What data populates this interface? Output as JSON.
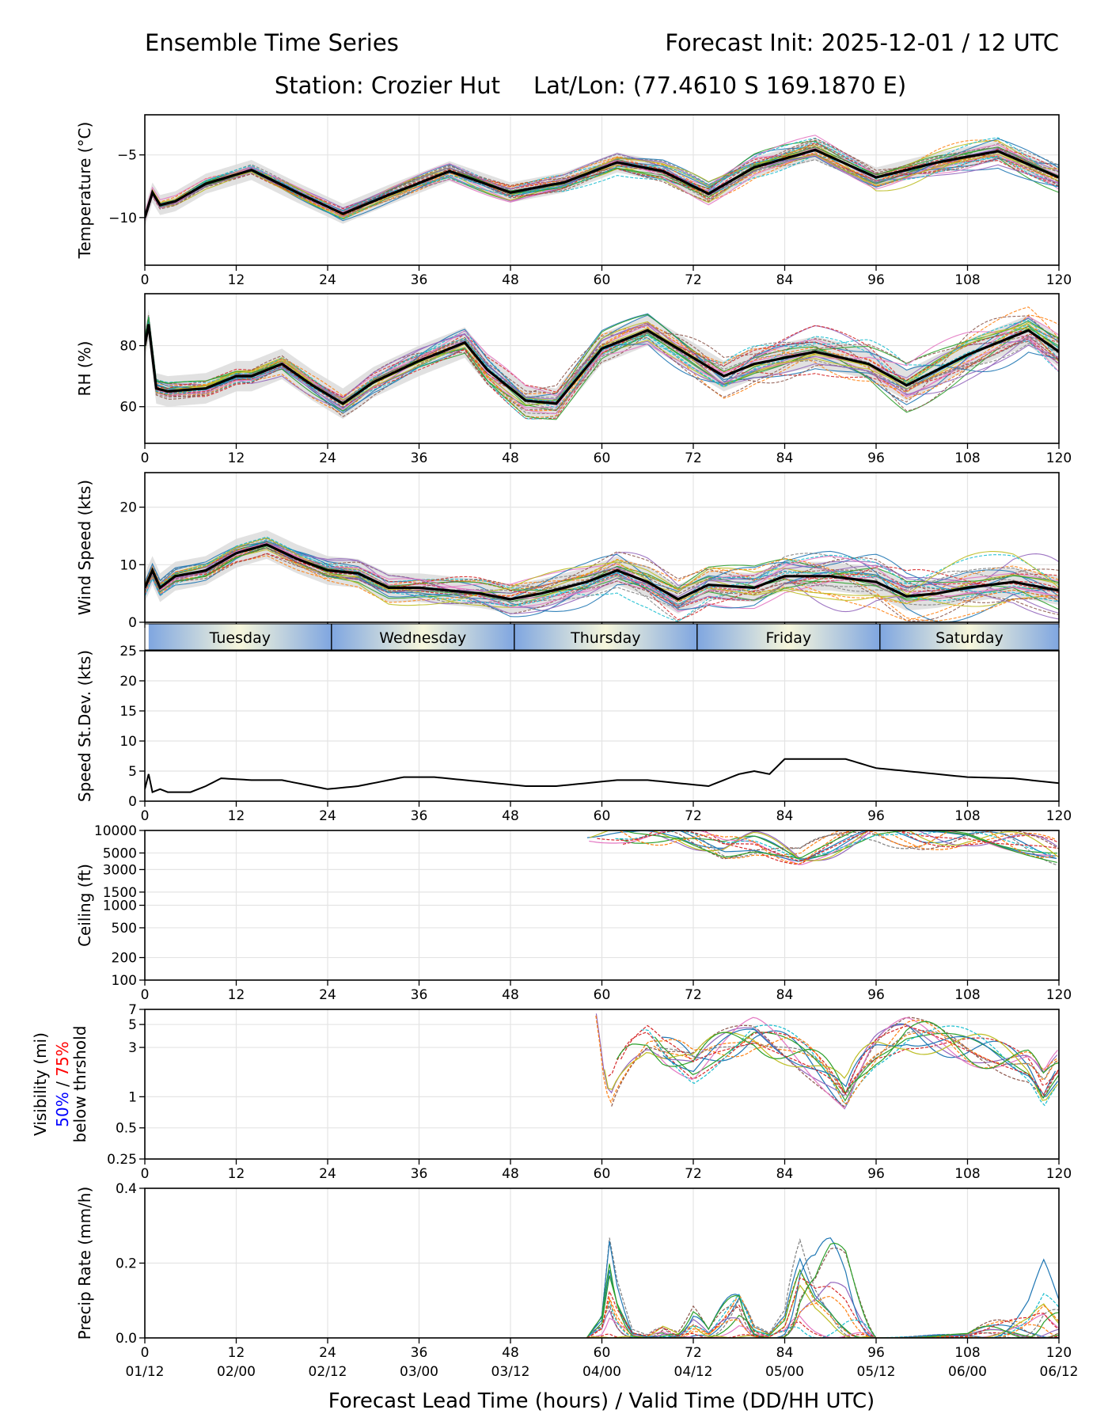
{
  "header": {
    "title_left": "Ensemble Time Series",
    "title_right": "Forecast Init: 2025-12-01 / 12 UTC",
    "station": "Station: Crozier Hut",
    "latlon": "Lat/Lon: (77.4610 S 169.1870 E)"
  },
  "xaxis": {
    "range": [
      0,
      120
    ],
    "ticks": [
      "0",
      "12",
      "24",
      "36",
      "48",
      "60",
      "72",
      "84",
      "96",
      "108",
      "120"
    ],
    "valid_ticks": [
      "01/12",
      "02/00",
      "02/12",
      "03/00",
      "03/12",
      "04/00",
      "04/12",
      "05/00",
      "05/12",
      "06/00",
      "06/12"
    ],
    "label": "Forecast Lead Time (hours) / Valid Time (DD/HH UTC)"
  },
  "days": [
    "Tuesday",
    "Wednesday",
    "Thursday",
    "Friday",
    "Saturday"
  ],
  "member_colors": [
    "#1f77b4",
    "#ff7f0e",
    "#2ca02c",
    "#d62728",
    "#9467bd",
    "#8c564b",
    "#e377c2",
    "#7f7f7f",
    "#bcbd22",
    "#17becf"
  ],
  "chart_data": [
    {
      "type": "line",
      "id": "temp",
      "ylabel": "Temperature (°C)",
      "ylim": [
        -13.8,
        -1.8
      ],
      "yticks": [
        -5,
        -10
      ],
      "ytick_labels": [
        "−5",
        "−10"
      ],
      "grid": true,
      "x": [
        0,
        1,
        2,
        4,
        8,
        14,
        20,
        26,
        32,
        40,
        48,
        55,
        62,
        68,
        74,
        80,
        88,
        96,
        104,
        112,
        120
      ],
      "mean": [
        -10,
        -8,
        -9,
        -8.7,
        -7.3,
        -6.2,
        -8,
        -9.7,
        -8.2,
        -6.3,
        -8,
        -7.2,
        -5.6,
        -6.3,
        -8.1,
        -6,
        -4.6,
        -6.8,
        -5.6,
        -4.7,
        -6.8
      ],
      "spread": 0.8
    },
    {
      "type": "line",
      "id": "rh",
      "ylabel": "RH (%)",
      "ylim": [
        48,
        97
      ],
      "yticks": [
        60,
        80
      ],
      "ytick_labels": [
        "60",
        "80"
      ],
      "grid": true,
      "x": [
        0,
        0.5,
        1.5,
        3,
        8,
        12,
        14,
        18,
        22,
        26,
        30,
        36,
        42,
        45,
        50,
        54,
        60,
        66,
        70,
        76,
        80,
        88,
        95,
        100,
        108,
        116,
        120
      ],
      "mean": [
        80,
        87,
        66,
        65,
        66,
        70,
        70,
        74,
        67,
        61,
        68,
        75,
        81,
        72,
        62,
        61,
        79,
        85,
        79,
        70,
        74,
        78,
        74,
        67,
        77,
        85,
        78
      ],
      "spread": 5
    },
    {
      "type": "line",
      "id": "wind",
      "ylabel": "Wind Speed (kts)",
      "ylim": [
        0,
        26
      ],
      "yticks": [
        0,
        10,
        20
      ],
      "ytick_labels": [
        "0",
        "10",
        "20"
      ],
      "grid": true,
      "x": [
        0,
        1,
        2,
        4,
        8,
        12,
        16,
        20,
        24,
        28,
        32,
        36,
        40,
        44,
        48,
        52,
        58,
        62,
        66,
        70,
        74,
        80,
        84,
        90,
        96,
        100,
        104,
        108,
        114,
        120
      ],
      "mean": [
        6,
        9,
        6,
        8,
        9,
        12,
        13.5,
        11,
        9,
        8.5,
        6,
        6,
        5.5,
        5,
        4,
        5,
        7,
        9,
        7,
        4,
        6.5,
        6,
        8,
        8,
        7,
        4.5,
        5,
        6,
        7,
        5.5
      ],
      "spread": 2.5
    },
    {
      "type": "line",
      "id": "sdev",
      "ylabel": "Speed St.Dev. (kts)",
      "ylim": [
        0,
        25
      ],
      "yticks": [
        0,
        5,
        10,
        15,
        20,
        25
      ],
      "ytick_labels": [
        "0",
        "5",
        "10",
        "15",
        "20",
        "25"
      ],
      "grid": true,
      "x": [
        0,
        0.5,
        1,
        2,
        3,
        4,
        6,
        8,
        10,
        14,
        18,
        22,
        24,
        28,
        32,
        34,
        38,
        42,
        46,
        50,
        54,
        58,
        62,
        66,
        70,
        74,
        78,
        80,
        82,
        84,
        88,
        92,
        96,
        100,
        104,
        108,
        114,
        120
      ],
      "values": [
        2,
        4.5,
        1.5,
        2,
        1.5,
        1.5,
        1.5,
        2.5,
        3.8,
        3.5,
        3.5,
        2.5,
        2,
        2.5,
        3.5,
        4,
        4,
        3.5,
        3,
        2.5,
        2.5,
        3,
        3.5,
        3.5,
        3,
        2.5,
        4.5,
        5,
        4.5,
        7,
        7,
        7,
        5.5,
        5,
        4.5,
        4,
        3.8,
        3
      ]
    },
    {
      "type": "line",
      "id": "ceiling",
      "ylabel": "Ceiling (ft)",
      "yscale": "log",
      "ylim": [
        100,
        10000
      ],
      "yticks": [
        100,
        200,
        500,
        1000,
        1500,
        3000,
        5000,
        10000
      ],
      "ytick_labels": [
        "100",
        "200",
        "500",
        "1000",
        "1500",
        "3000",
        "5000",
        "10000"
      ],
      "grid": true,
      "x": [
        58,
        64,
        70,
        76,
        80,
        86,
        90,
        96,
        102,
        108,
        114,
        120
      ],
      "values": [
        9500,
        8000,
        9000,
        6000,
        7000,
        4500,
        6000,
        9000,
        8000,
        9000,
        7000,
        5000
      ]
    },
    {
      "type": "line",
      "id": "visibility",
      "ylabel": "Visibility (mi)",
      "ylabel_line2_blue": "50%",
      "ylabel_line2_sep": " / ",
      "ylabel_line2_red": "75%",
      "ylabel_line3": "below thrshold",
      "yscale": "log",
      "ylim": [
        0.25,
        7
      ],
      "yticks": [
        0.25,
        0.5,
        1,
        3,
        5,
        7
      ],
      "ytick_labels": [
        "0.25",
        "0.5",
        "1",
        "3",
        "5",
        "7"
      ],
      "grid": true,
      "x": [
        59,
        60,
        61,
        64,
        66,
        68,
        72,
        76,
        80,
        84,
        88,
        92,
        96,
        100,
        108,
        116,
        118,
        120
      ],
      "values": [
        7,
        2,
        1,
        3,
        4,
        3,
        2,
        3,
        4,
        3,
        2,
        1,
        3,
        4,
        3,
        2,
        1.2,
        2
      ]
    },
    {
      "type": "line",
      "id": "precip",
      "ylabel": "Precip Rate (mm/h)",
      "ylim": [
        0,
        0.4
      ],
      "yticks": [
        0,
        0.2,
        0.4
      ],
      "ytick_labels": [
        "0.0",
        "0.2",
        "0.4"
      ],
      "grid": true,
      "x": [
        0,
        58,
        60,
        61,
        62,
        64,
        66,
        68,
        70,
        72,
        74,
        76,
        78,
        80,
        82,
        84,
        86,
        88,
        90,
        92,
        96,
        108,
        116,
        118,
        120
      ],
      "values": [
        0,
        0,
        0.05,
        0.21,
        0.12,
        0.02,
        0.01,
        0.06,
        0.02,
        0.08,
        0.02,
        0.08,
        0.14,
        0.03,
        0.01,
        0.06,
        0.26,
        0.2,
        0.22,
        0.2,
        0,
        0.01,
        0.1,
        0.17,
        0.1
      ]
    }
  ]
}
